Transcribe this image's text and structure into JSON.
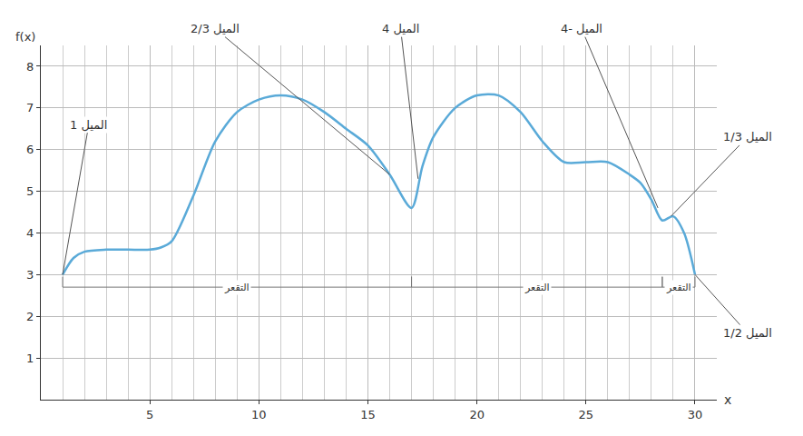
{
  "chart_data": {
    "type": "line",
    "x_label": "x",
    "y_label": "f(x)",
    "color": "#5aaad8",
    "line_style": "solid",
    "grid": true,
    "xlim": [
      0,
      31
    ],
    "ylim": [
      0,
      8.5
    ],
    "xticks": [
      5,
      10,
      15,
      20,
      25,
      30
    ],
    "yticks": [
      1,
      2,
      3,
      4,
      5,
      6,
      7,
      8
    ],
    "x": [
      1,
      1.5,
      2,
      3,
      4,
      5,
      5.5,
      6,
      7,
      8,
      9,
      10,
      11,
      12,
      13,
      14,
      15,
      16,
      17,
      17.5,
      18,
      19,
      20,
      21,
      22,
      23,
      24,
      25,
      26,
      27,
      27.5,
      28,
      28.5,
      29,
      29.5,
      30
    ],
    "values": [
      3,
      3.4,
      3.55,
      3.6,
      3.6,
      3.6,
      3.65,
      3.8,
      4.9,
      6.2,
      6.9,
      7.2,
      7.3,
      7.2,
      6.9,
      6.5,
      6.1,
      5.4,
      4.6,
      5.6,
      6.3,
      7.0,
      7.3,
      7.3,
      6.9,
      6.2,
      5.7,
      5.7,
      5.7,
      5.4,
      5.2,
      4.8,
      4.3,
      4.4,
      4.0,
      3.0
    ],
    "annotations": [
      {
        "text": "الميل 1",
        "x": 1,
        "y": 3,
        "label_x": 2.2,
        "label_y": 6.6
      },
      {
        "text": "الميل 2/3",
        "x": 16,
        "y": 5.4,
        "label_x": 8,
        "label_y": 8.9
      },
      {
        "text": "الميل 4",
        "x": 17.3,
        "y": 5.3,
        "label_x": 16.5,
        "label_y": 8.9
      },
      {
        "text": "الميل -4",
        "x": 28.3,
        "y": 4.6,
        "label_x": 24.8,
        "label_y": 8.9
      },
      {
        "text": "الميل 1/3",
        "x": 28.9,
        "y": 4.4,
        "label_x": 32.4,
        "label_y": 6.3
      },
      {
        "text": "الميل 1/2",
        "x": 30,
        "y": 3,
        "label_x": 32.4,
        "label_y": 1.6
      }
    ],
    "concavity": {
      "y": 2.7,
      "segments": [
        {
          "text": "التقعر",
          "from": 1,
          "to": 17
        },
        {
          "text": "التقعر",
          "from": 17,
          "to": 28.5
        },
        {
          "text": "التقعر",
          "from": 28.5,
          "to": 30
        }
      ]
    }
  }
}
